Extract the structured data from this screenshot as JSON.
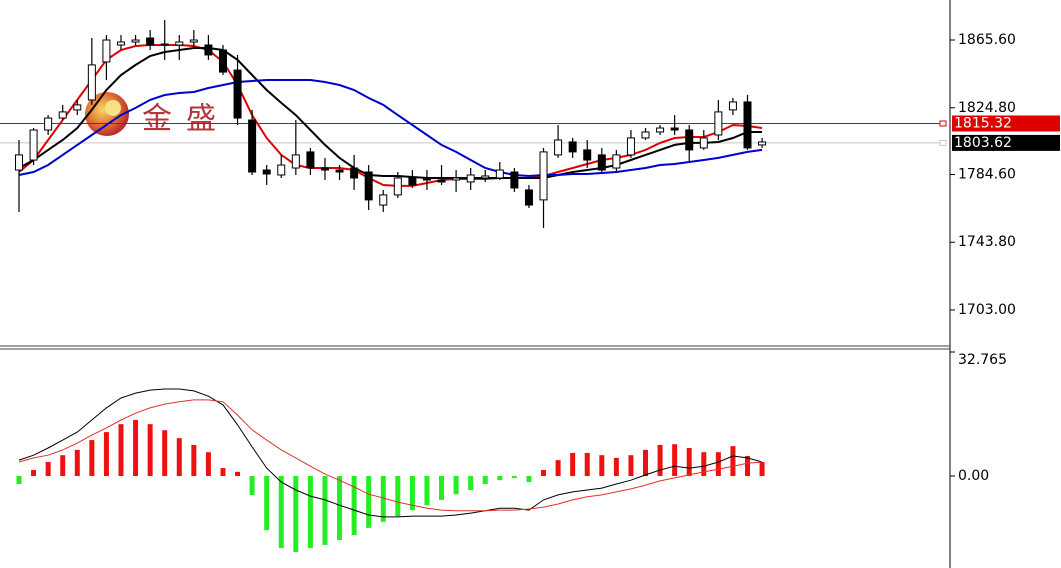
{
  "chart_data": [
    {
      "type": "candlestick",
      "watermark": "金盛",
      "ylim": [
        1681.9,
        1889.7
      ],
      "yticks": [
        {
          "value": 1865.6,
          "label": "1865.60"
        },
        {
          "value": 1824.8,
          "label": "1824.80"
        },
        {
          "value": 1784.6,
          "label": "1784.60"
        },
        {
          "value": 1743.8,
          "label": "1743.80"
        },
        {
          "value": 1703.0,
          "label": "1703.00"
        }
      ],
      "up_color": "#ffffff",
      "down_color": "#000000",
      "open": [
        1787.3,
        1793.3,
        1811.4,
        1818.6,
        1823.5,
        1829.5,
        1852.4,
        1862.6,
        1864.4,
        1866.8,
        1862.6,
        1862.6,
        1864.4,
        1862.6,
        1859.6,
        1847.5,
        1817.4,
        1787.3,
        1784.3,
        1788.5,
        1798.2,
        1788.5,
        1787.3,
        1788.5,
        1786.1,
        1766.2,
        1772.3,
        1782.5,
        1782.5,
        1781.3,
        1781.3,
        1780.1,
        1782.5,
        1782.5,
        1786.1,
        1775.3,
        1769.3,
        1796.4,
        1804.2,
        1799.4,
        1796.4,
        1788.5,
        1796.4,
        1806.6,
        1810.2,
        1812.6,
        1811.4,
        1800.6,
        1808.4,
        1823.5,
        1828.3,
        1802.4
      ],
      "high": [
        1805.4,
        1812.6,
        1820.4,
        1826.5,
        1829.5,
        1866.8,
        1868.6,
        1868.6,
        1868.6,
        1871.6,
        1877.7,
        1868.6,
        1871.6,
        1868.6,
        1862.6,
        1856.6,
        1823.5,
        1790.3,
        1796.4,
        1817.4,
        1800.6,
        1794.6,
        1790.3,
        1796.4,
        1790.3,
        1775.3,
        1786.1,
        1787.3,
        1787.3,
        1790.3,
        1787.3,
        1788.5,
        1787.3,
        1792.1,
        1788.5,
        1778.3,
        1800.6,
        1814.4,
        1806.6,
        1805.4,
        1800.6,
        1799.4,
        1811.4,
        1812.6,
        1814.4,
        1820.4,
        1814.4,
        1811.4,
        1829.5,
        1830.7,
        1832.5,
        1806.6
      ],
      "low": [
        1762.0,
        1790.3,
        1808.4,
        1817.4,
        1820.4,
        1826.5,
        1841.5,
        1859.6,
        1862.6,
        1859.6,
        1853.6,
        1853.6,
        1860.8,
        1853.6,
        1844.5,
        1814.4,
        1784.3,
        1778.3,
        1782.5,
        1784.3,
        1784.3,
        1781.3,
        1781.3,
        1775.3,
        1763.2,
        1762.0,
        1770.5,
        1776.5,
        1775.3,
        1778.3,
        1774.1,
        1775.3,
        1780.1,
        1781.3,
        1774.1,
        1764.4,
        1752.4,
        1794.6,
        1794.6,
        1788.5,
        1786.1,
        1786.1,
        1794.6,
        1805.4,
        1808.4,
        1808.4,
        1792.1,
        1799.4,
        1805.4,
        1820.4,
        1799.4,
        1800.6
      ],
      "close": [
        1796.4,
        1811.4,
        1818.6,
        1822.3,
        1826.5,
        1850.6,
        1865.6,
        1864.4,
        1865.6,
        1862.6,
        1863.2,
        1864.4,
        1865.6,
        1856.6,
        1846.3,
        1818.6,
        1786.1,
        1784.9,
        1790.3,
        1796.4,
        1788.5,
        1787.3,
        1786.1,
        1782.5,
        1769.3,
        1772.3,
        1782.5,
        1778.3,
        1781.3,
        1780.1,
        1782.5,
        1784.3,
        1783.7,
        1787.3,
        1776.5,
        1766.2,
        1798.2,
        1805.4,
        1798.2,
        1793.3,
        1787.3,
        1796.4,
        1806.6,
        1810.2,
        1812.6,
        1811.4,
        1799.4,
        1806.6,
        1822.3,
        1828.3,
        1800.6,
        1804.2
      ],
      "series": [
        {
          "color": "#e00000",
          "values": [
            1786.1,
            1793.3,
            1805.4,
            1817.4,
            1829.5,
            1841.5,
            1853.6,
            1859.6,
            1862.0,
            1862.6,
            1862.6,
            1862.6,
            1862.0,
            1859.6,
            1852.4,
            1838.5,
            1820.4,
            1806.6,
            1796.4,
            1790.3,
            1788.5,
            1788.5,
            1788.5,
            1787.3,
            1782.5,
            1778.3,
            1777.7,
            1777.7,
            1779.5,
            1781.3,
            1781.9,
            1781.9,
            1781.9,
            1782.5,
            1782.5,
            1782.5,
            1783.7,
            1786.1,
            1788.5,
            1790.9,
            1793.3,
            1794.6,
            1796.4,
            1799.4,
            1803.6,
            1806.6,
            1807.2,
            1807.2,
            1810.2,
            1814.4,
            1813.8,
            1812.6
          ]
        },
        {
          "color": "#000000",
          "values": [
            1788.5,
            1793.3,
            1799.4,
            1805.4,
            1812.6,
            1823.5,
            1835.5,
            1844.5,
            1850.6,
            1856.0,
            1858.4,
            1859.6,
            1860.8,
            1860.8,
            1859.6,
            1853.6,
            1844.5,
            1835.5,
            1827.7,
            1820.4,
            1811.4,
            1802.4,
            1794.6,
            1788.5,
            1784.3,
            1783.7,
            1783.7,
            1783.1,
            1782.5,
            1782.5,
            1782.5,
            1782.5,
            1782.5,
            1782.5,
            1782.5,
            1782.5,
            1782.5,
            1784.3,
            1786.1,
            1787.3,
            1788.5,
            1790.3,
            1793.3,
            1796.4,
            1799.4,
            1802.4,
            1803.6,
            1803.6,
            1804.2,
            1806.6,
            1810.2,
            1810.2
          ]
        },
        {
          "color": "#0000cc",
          "values": [
            1784.3,
            1786.1,
            1790.3,
            1796.4,
            1802.4,
            1808.4,
            1814.4,
            1820.4,
            1824.7,
            1829.5,
            1832.5,
            1833.7,
            1834.3,
            1836.7,
            1838.5,
            1840.3,
            1840.9,
            1841.5,
            1841.5,
            1841.5,
            1841.5,
            1840.3,
            1838.5,
            1835.5,
            1830.7,
            1826.5,
            1820.4,
            1814.4,
            1808.4,
            1802.4,
            1798.2,
            1793.3,
            1788.5,
            1786.1,
            1784.3,
            1783.7,
            1784.3,
            1784.3,
            1784.9,
            1784.9,
            1785.5,
            1786.1,
            1787.3,
            1788.5,
            1790.3,
            1790.9,
            1792.1,
            1793.3,
            1794.6,
            1796.4,
            1798.2,
            1799.4
          ]
        }
      ],
      "price_lines": [
        {
          "value": 1815.32,
          "color": "#e00000",
          "line_color": "#dd0000"
        },
        {
          "value": 1803.62,
          "color": "#000000",
          "line_color": "#c8c8c8"
        }
      ]
    },
    {
      "type": "macd",
      "ylim": [
        -24.3,
        32.765
      ],
      "yticks": [
        32.765,
        {
          "value": 0,
          "label": "0.00"
        }
      ],
      "up_color": "#ee1111",
      "down_color": "#22ee22",
      "histogram": [
        -2.1,
        1.6,
        3.7,
        5.5,
        6.9,
        9.5,
        11.6,
        13.7,
        14.8,
        13.7,
        12.1,
        10.0,
        8.2,
        6.3,
        2.1,
        1.1,
        -5.0,
        -14.3,
        -19.0,
        -20.1,
        -19.0,
        -18.2,
        -16.9,
        -15.6,
        -13.7,
        -12.1,
        -10.6,
        -9.0,
        -7.7,
        -6.3,
        -4.8,
        -3.7,
        -2.1,
        -1.1,
        -0.5,
        -1.6,
        1.6,
        4.2,
        6.1,
        6.1,
        5.5,
        4.8,
        5.5,
        6.9,
        8.2,
        8.4,
        7.4,
        6.3,
        6.3,
        7.9,
        5.3,
        3.7
      ],
      "series": [
        {
          "color": "#000000",
          "values": [
            4.2,
            5.5,
            7.4,
            9.5,
            11.6,
            14.8,
            18.0,
            20.6,
            21.9,
            22.7,
            23.0,
            23.0,
            22.5,
            21.1,
            18.8,
            13.5,
            7.7,
            2.1,
            -1.6,
            -3.7,
            -5.3,
            -6.3,
            -7.7,
            -9.0,
            -10.3,
            -10.8,
            -10.8,
            -10.6,
            -10.6,
            -10.6,
            -10.3,
            -9.8,
            -9.2,
            -8.5,
            -8.5,
            -9.0,
            -6.3,
            -5.0,
            -4.2,
            -3.7,
            -3.2,
            -2.1,
            -1.1,
            0.3,
            1.6,
            2.6,
            2.1,
            2.6,
            3.7,
            5.3,
            4.8,
            3.7
          ]
        },
        {
          "color": "#e03030",
          "values": [
            3.7,
            4.8,
            5.5,
            6.9,
            8.7,
            10.8,
            12.7,
            14.8,
            16.6,
            18.0,
            19.0,
            19.6,
            20.1,
            20.1,
            19.6,
            16.1,
            12.2,
            9.5,
            6.9,
            4.8,
            2.6,
            0.5,
            -1.1,
            -2.9,
            -4.8,
            -5.8,
            -6.9,
            -7.7,
            -8.5,
            -9.0,
            -9.2,
            -9.2,
            -9.2,
            -9.0,
            -9.0,
            -8.7,
            -8.2,
            -7.4,
            -6.3,
            -5.5,
            -5.0,
            -4.2,
            -3.4,
            -2.4,
            -1.3,
            -0.5,
            0.3,
            1.1,
            1.8,
            2.6,
            3.4,
            3.7
          ]
        }
      ]
    }
  ]
}
